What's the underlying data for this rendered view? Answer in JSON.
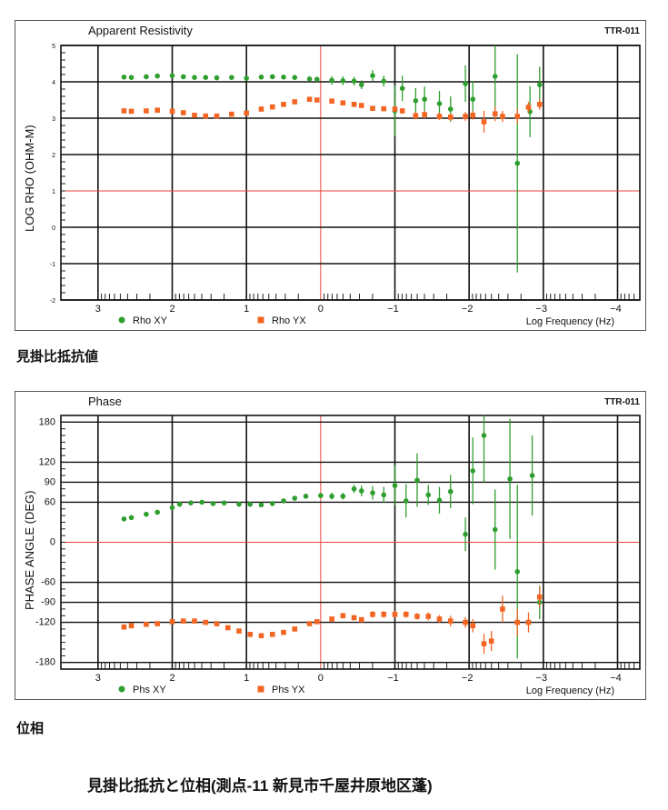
{
  "chart_data": [
    {
      "type": "scatter",
      "title": "Apparent Resistivity",
      "id_label": "TTR-011",
      "ylabel": "LOG RHO (OHM-M)",
      "xlabel": "Log Frequency (Hz)",
      "xlim": [
        3.5,
        -4.3
      ],
      "ylim": [
        -2,
        5
      ],
      "x_ticks": [
        "3",
        "2",
        "1",
        "0",
        "−1",
        "−2",
        "−3",
        "−4"
      ],
      "y_ticks": [
        "5",
        "4",
        "3",
        "2",
        "1",
        "0",
        "-1",
        "-2"
      ],
      "reference_lines": {
        "x": 0,
        "y": 1
      },
      "series": [
        {
          "name": "Rho XY",
          "marker": "circle",
          "color": "#2e9e2e",
          "points": [
            [
              2.65,
              4.13
            ],
            [
              2.55,
              4.12
            ],
            [
              2.35,
              4.14
            ],
            [
              2.2,
              4.16
            ],
            [
              2.0,
              4.17
            ],
            [
              1.85,
              4.14
            ],
            [
              1.7,
              4.12
            ],
            [
              1.55,
              4.12
            ],
            [
              1.4,
              4.11
            ],
            [
              1.2,
              4.12
            ],
            [
              1.0,
              4.1
            ],
            [
              0.8,
              4.13
            ],
            [
              0.65,
              4.14
            ],
            [
              0.5,
              4.13
            ],
            [
              0.35,
              4.12
            ],
            [
              0.15,
              4.08
            ],
            [
              0.05,
              4.07
            ],
            [
              -0.15,
              4.04
            ],
            [
              -0.3,
              4.03
            ],
            [
              -0.45,
              4.02
            ],
            [
              -0.55,
              3.92
            ],
            [
              -0.7,
              4.17
            ],
            [
              -0.85,
              4.02
            ],
            [
              -1.0,
              3.2
            ],
            [
              -1.1,
              3.82
            ],
            [
              -1.28,
              3.48
            ],
            [
              -1.4,
              3.52
            ],
            [
              -1.6,
              3.4
            ],
            [
              -1.75,
              3.25
            ],
            [
              -1.95,
              3.95
            ],
            [
              -2.05,
              3.52
            ],
            [
              -2.35,
              4.15
            ],
            [
              -2.65,
              1.76
            ],
            [
              -2.82,
              3.18
            ],
            [
              -2.95,
              3.92
            ]
          ],
          "errors": [
            0,
            0,
            0,
            0,
            0,
            0,
            0,
            0,
            0,
            0,
            0,
            0,
            0,
            0,
            0,
            0,
            0,
            0.12,
            0.12,
            0.12,
            0.12,
            0.15,
            0.15,
            0.7,
            0.35,
            0.35,
            0.35,
            0.35,
            0.35,
            0.5,
            0.5,
            1.1,
            3.0,
            0.7,
            0.5
          ]
        },
        {
          "name": "Rho YX",
          "marker": "square",
          "color": "#f26522",
          "points": [
            [
              2.65,
              3.2
            ],
            [
              2.55,
              3.19
            ],
            [
              2.35,
              3.2
            ],
            [
              2.2,
              3.22
            ],
            [
              2.0,
              3.19
            ],
            [
              1.85,
              3.15
            ],
            [
              1.7,
              3.08
            ],
            [
              1.55,
              3.06
            ],
            [
              1.4,
              3.06
            ],
            [
              1.2,
              3.11
            ],
            [
              1.0,
              3.14
            ],
            [
              0.8,
              3.25
            ],
            [
              0.65,
              3.31
            ],
            [
              0.5,
              3.38
            ],
            [
              0.35,
              3.45
            ],
            [
              0.15,
              3.52
            ],
            [
              0.05,
              3.5
            ],
            [
              -0.15,
              3.47
            ],
            [
              -0.3,
              3.42
            ],
            [
              -0.45,
              3.38
            ],
            [
              -0.55,
              3.35
            ],
            [
              -0.7,
              3.27
            ],
            [
              -0.85,
              3.26
            ],
            [
              -1.0,
              3.25
            ],
            [
              -1.1,
              3.2
            ],
            [
              -1.28,
              3.07
            ],
            [
              -1.4,
              3.1
            ],
            [
              -1.6,
              3.05
            ],
            [
              -1.75,
              3.03
            ],
            [
              -1.95,
              3.05
            ],
            [
              -2.05,
              3.08
            ],
            [
              -2.2,
              2.9
            ],
            [
              -2.35,
              3.12
            ],
            [
              -2.45,
              3.05
            ],
            [
              -2.65,
              3.05
            ],
            [
              -2.8,
              3.3
            ],
            [
              -2.95,
              3.38
            ]
          ],
          "errors": [
            0,
            0,
            0,
            0,
            0,
            0,
            0,
            0,
            0,
            0,
            0,
            0,
            0,
            0,
            0,
            0,
            0,
            0,
            0,
            0,
            0,
            0,
            0,
            0.08,
            0.08,
            0.1,
            0.1,
            0.1,
            0.1,
            0.12,
            0.12,
            0.3,
            0.2,
            0.15,
            0.2,
            0.15,
            0.15
          ]
        }
      ]
    },
    {
      "type": "scatter",
      "title": "Phase",
      "id_label": "TTR-011",
      "ylabel": "PHASE ANGLE (DEG)",
      "xlabel": "Log Frequency (Hz)",
      "xlim": [
        3.5,
        -4.3
      ],
      "ylim": [
        -190,
        190
      ],
      "x_ticks": [
        "3",
        "2",
        "1",
        "0",
        "−1",
        "−2",
        "−3",
        "−4"
      ],
      "y_ticks": [
        "180",
        "120",
        "90",
        "60",
        "0",
        "-60",
        "-90",
        "-120",
        "-180"
      ],
      "reference_lines": {
        "x": 0,
        "y": 0
      },
      "series": [
        {
          "name": "Phs XY",
          "marker": "circle",
          "color": "#2e9e2e",
          "points": [
            [
              2.65,
              35
            ],
            [
              2.55,
              37
            ],
            [
              2.35,
              42
            ],
            [
              2.2,
              45
            ],
            [
              2.0,
              52
            ],
            [
              1.9,
              57
            ],
            [
              1.75,
              59
            ],
            [
              1.6,
              60
            ],
            [
              1.45,
              58
            ],
            [
              1.3,
              59
            ],
            [
              1.1,
              57
            ],
            [
              0.95,
              57
            ],
            [
              0.8,
              56
            ],
            [
              0.65,
              58
            ],
            [
              0.5,
              62
            ],
            [
              0.35,
              66
            ],
            [
              0.2,
              69
            ],
            [
              0.0,
              70
            ],
            [
              -0.15,
              69
            ],
            [
              -0.3,
              69
            ],
            [
              -0.45,
              80
            ],
            [
              -0.55,
              77
            ],
            [
              -0.7,
              74
            ],
            [
              -0.85,
              71
            ],
            [
              -1.0,
              85
            ],
            [
              -1.15,
              62
            ],
            [
              -1.3,
              93
            ],
            [
              -1.45,
              71
            ],
            [
              -1.6,
              63
            ],
            [
              -1.75,
              76
            ],
            [
              -1.95,
              12
            ],
            [
              -2.05,
              107
            ],
            [
              -2.2,
              160
            ],
            [
              -2.35,
              19
            ],
            [
              -2.55,
              95
            ],
            [
              -2.65,
              -44
            ],
            [
              -2.85,
              100
            ],
            [
              -2.95,
              -90
            ]
          ],
          "errors": [
            0,
            0,
            0,
            0,
            0,
            0,
            0,
            0,
            0,
            0,
            0,
            0,
            0,
            0,
            0,
            0,
            0,
            0,
            5,
            5,
            6,
            8,
            10,
            12,
            30,
            25,
            40,
            15,
            20,
            25,
            25,
            50,
            70,
            60,
            90,
            130,
            60,
            25
          ]
        },
        {
          "name": "Phs YX",
          "marker": "square",
          "color": "#f26522",
          "points": [
            [
              2.65,
              -127
            ],
            [
              2.55,
              -125
            ],
            [
              2.35,
              -123
            ],
            [
              2.2,
              -122
            ],
            [
              2.0,
              -119
            ],
            [
              1.85,
              -118
            ],
            [
              1.7,
              -118
            ],
            [
              1.55,
              -120
            ],
            [
              1.4,
              -122
            ],
            [
              1.25,
              -128
            ],
            [
              1.1,
              -133
            ],
            [
              0.95,
              -138
            ],
            [
              0.8,
              -140
            ],
            [
              0.65,
              -138
            ],
            [
              0.5,
              -135
            ],
            [
              0.35,
              -130
            ],
            [
              0.15,
              -122
            ],
            [
              0.05,
              -119
            ],
            [
              -0.15,
              -115
            ],
            [
              -0.3,
              -110
            ],
            [
              -0.45,
              -113
            ],
            [
              -0.55,
              -116
            ],
            [
              -0.7,
              -108
            ],
            [
              -0.85,
              -108
            ],
            [
              -1.0,
              -108
            ],
            [
              -1.15,
              -108
            ],
            [
              -1.3,
              -111
            ],
            [
              -1.45,
              -111
            ],
            [
              -1.6,
              -115
            ],
            [
              -1.75,
              -118
            ],
            [
              -1.95,
              -120
            ],
            [
              -2.05,
              -125
            ],
            [
              -2.2,
              -152
            ],
            [
              -2.3,
              -148
            ],
            [
              -2.45,
              -100
            ],
            [
              -2.65,
              -120
            ],
            [
              -2.8,
              -120
            ],
            [
              -2.95,
              -82
            ]
          ],
          "errors": [
            0,
            0,
            0,
            0,
            0,
            0,
            0,
            0,
            0,
            0,
            0,
            0,
            0,
            0,
            0,
            0,
            0,
            0,
            0,
            4,
            4,
            4,
            5,
            5,
            5,
            5,
            5,
            6,
            6,
            8,
            8,
            10,
            15,
            15,
            20,
            20,
            15,
            15
          ]
        }
      ]
    }
  ],
  "captions": {
    "rho": "見掛比抵抗値",
    "phase": "位相",
    "main": "見掛比抵抗と位相(測点-11 新見市千屋井原地区蓬)"
  }
}
